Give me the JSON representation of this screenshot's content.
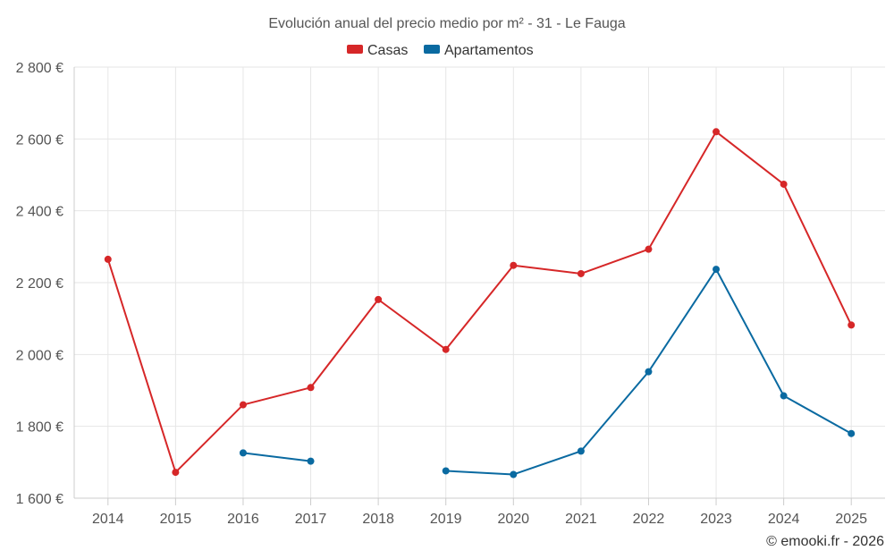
{
  "chart_data": {
    "type": "line",
    "title": "Evolución anual del precio medio por m² - 31 - Le Fauga",
    "xlabel": "",
    "ylabel": "",
    "categories": [
      "2014",
      "2015",
      "2016",
      "2017",
      "2018",
      "2019",
      "2020",
      "2021",
      "2022",
      "2023",
      "2024",
      "2025"
    ],
    "ylim": [
      1600,
      2800
    ],
    "yticks": [
      1600,
      1800,
      2000,
      2200,
      2400,
      2600,
      2800
    ],
    "ytick_labels": [
      "1 600 €",
      "1 800 €",
      "2 000 €",
      "2 200 €",
      "2 400 €",
      "2 600 €",
      "2 800 €"
    ],
    "grid": true,
    "legend_position": "top-center",
    "series": [
      {
        "name": "Casas",
        "color": "#d62728",
        "values": [
          2265,
          1672,
          1860,
          1908,
          2153,
          2014,
          2248,
          2225,
          2293,
          2620,
          2474,
          2082
        ]
      },
      {
        "name": "Apartamentos",
        "color": "#0a6aa1",
        "values": [
          null,
          null,
          1726,
          1703,
          null,
          1676,
          1666,
          1731,
          1952,
          2237,
          1885,
          1780
        ]
      }
    ]
  },
  "credit": "© emooki.fr - 2026"
}
